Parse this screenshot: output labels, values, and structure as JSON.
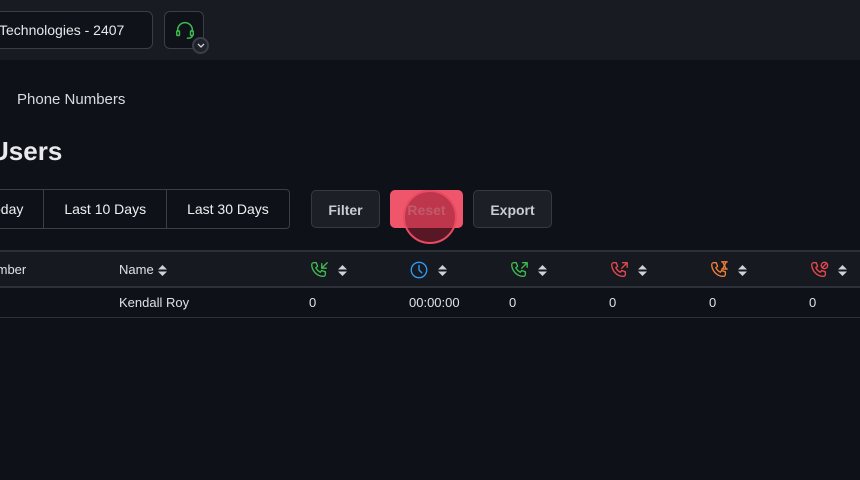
{
  "header": {
    "organization": "Technologies - 2407",
    "agent_icon": "headset-icon"
  },
  "breadcrumb": "Phone Numbers",
  "page_title": "Users",
  "date_ranges": [
    "Today",
    "Last 10 Days",
    "Last 30 Days"
  ],
  "actions": {
    "filter": "Filter",
    "reset": "Reset",
    "export": "Export"
  },
  "table": {
    "columns": [
      {
        "label": "Number"
      },
      {
        "label": "Name"
      },
      {
        "icon": "incoming-call-icon",
        "color": "#3fb950"
      },
      {
        "icon": "clock-icon",
        "color": "#2f9bf0"
      },
      {
        "icon": "outgoing-call-icon",
        "color": "#3fb950"
      },
      {
        "icon": "missed-outgoing-call-icon",
        "color": "#e5484d"
      },
      {
        "icon": "pending-call-icon",
        "color": "#f07d3a"
      },
      {
        "icon": "blocked-call-icon",
        "color": "#e5484d"
      }
    ],
    "rows": [
      {
        "number": "",
        "name": "Kendall Roy",
        "incoming": "0",
        "duration": "00:00:00",
        "outgoing": "0",
        "missed": "0",
        "pending": "0",
        "blocked": "0"
      }
    ]
  }
}
